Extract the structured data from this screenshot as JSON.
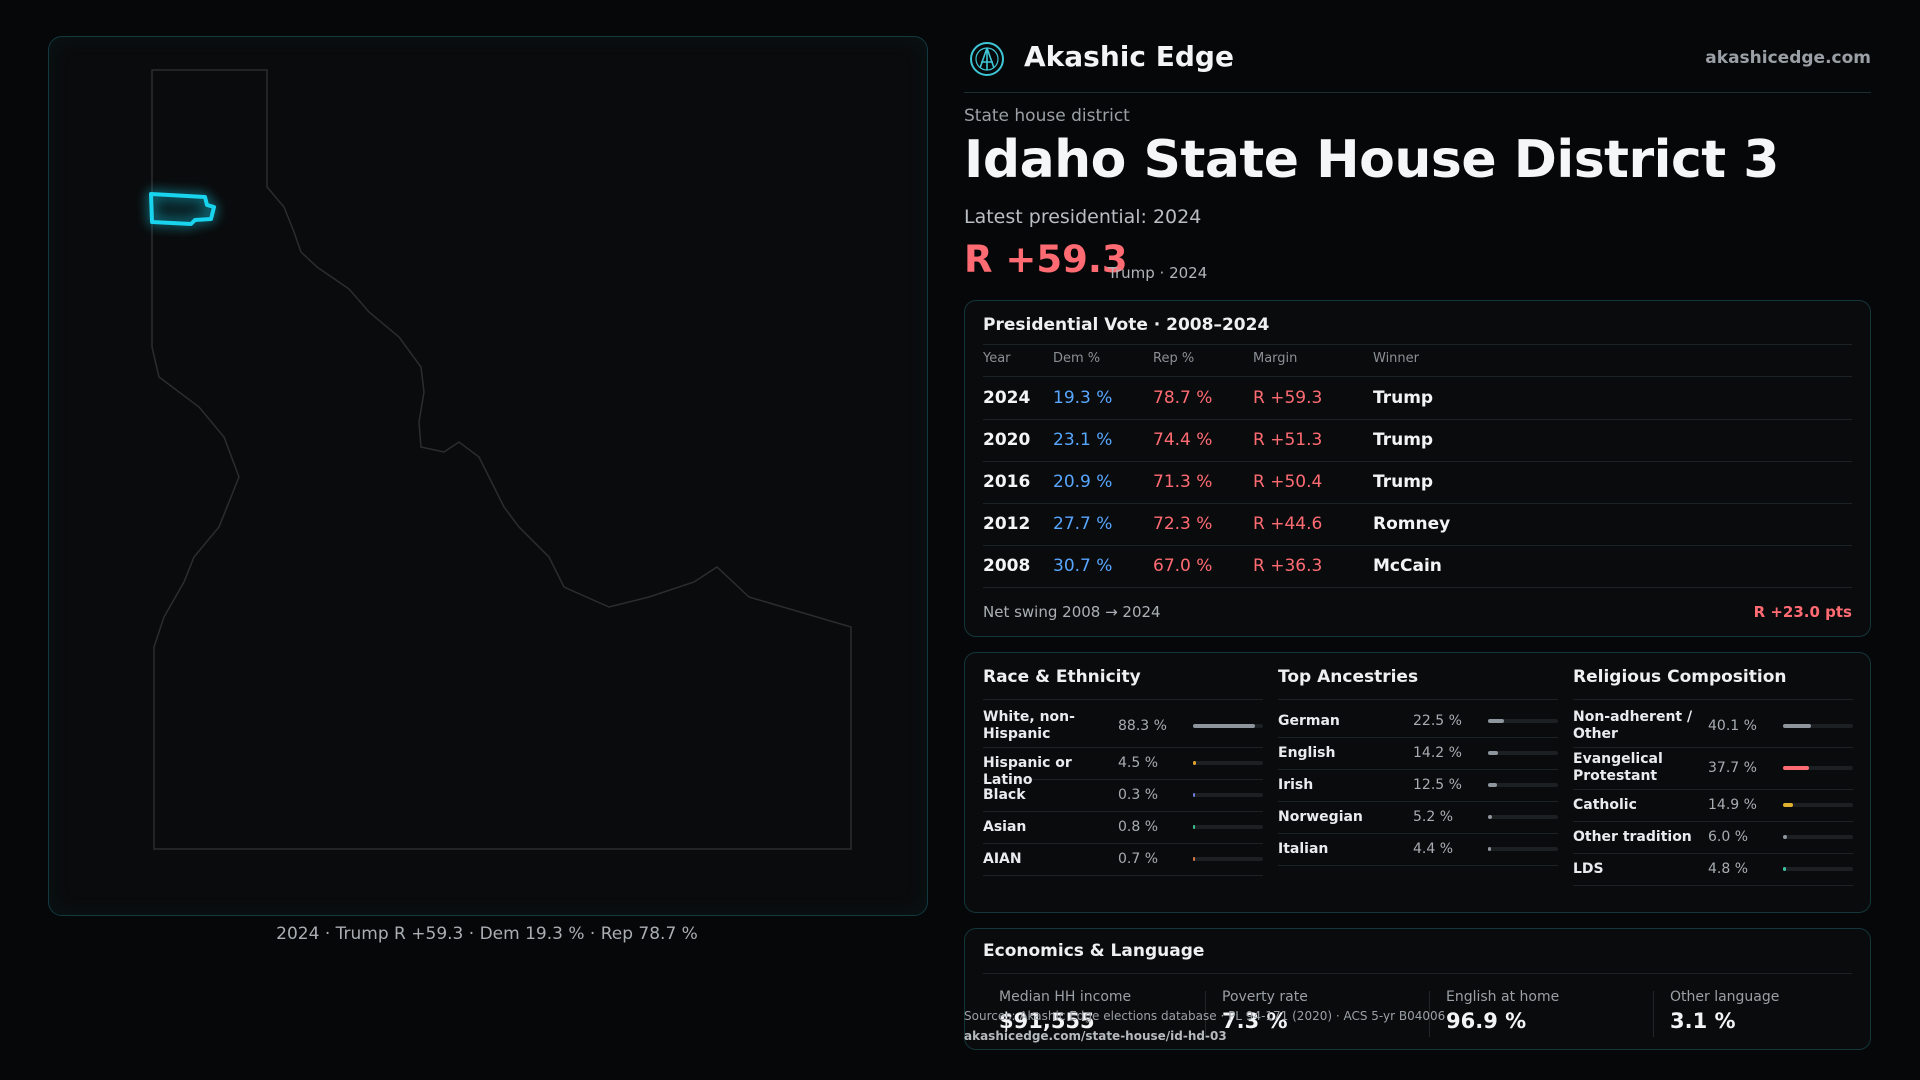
{
  "header": {
    "brand": "Akashic Edge",
    "site": "akashicedge.com"
  },
  "district": {
    "kicker": "State house district",
    "title": "Idaho State House District 3",
    "latest": "Latest presidential: 2024",
    "margin": "R +59.3",
    "margin_sub": "Trump · 2024"
  },
  "map": {
    "caption": "2024 · Trump R +59.3 · Dem 19.3 % · Rep 78.7 %"
  },
  "vote": {
    "title": "Presidential Vote · 2008–2024",
    "columns": [
      "Year",
      "Dem %",
      "Rep %",
      "Margin",
      "Winner"
    ],
    "rows": [
      {
        "year": "2024",
        "dem": "19.3 %",
        "rep": "78.7 %",
        "margin": "R +59.3",
        "winner": "Trump"
      },
      {
        "year": "2020",
        "dem": "23.1 %",
        "rep": "74.4 %",
        "margin": "R +51.3",
        "winner": "Trump"
      },
      {
        "year": "2016",
        "dem": "20.9 %",
        "rep": "71.3 %",
        "margin": "R +50.4",
        "winner": "Trump"
      },
      {
        "year": "2012",
        "dem": "27.7 %",
        "rep": "72.3 %",
        "margin": "R +44.6",
        "winner": "Romney"
      },
      {
        "year": "2008",
        "dem": "30.7 %",
        "rep": "67.0 %",
        "margin": "R +36.3",
        "winner": "McCain"
      }
    ],
    "swing_label": "Net swing 2008 → 2024",
    "swing_value": "R +23.0 pts"
  },
  "race": {
    "title": "Race & Ethnicity",
    "items": [
      {
        "label": "White, non-Hispanic",
        "value": "88.3 %",
        "pct": 88.3,
        "color": "#8e959c"
      },
      {
        "label": "Hispanic or Latino",
        "value": "4.5 %",
        "pct": 4.5,
        "color": "#e0a030"
      },
      {
        "label": "Black",
        "value": "0.3 %",
        "pct": 0.3,
        "color": "#6c7bd8"
      },
      {
        "label": "Asian",
        "value": "0.8 %",
        "pct": 0.8,
        "color": "#3fbf8f"
      },
      {
        "label": "AIAN",
        "value": "0.7 %",
        "pct": 0.7,
        "color": "#d8784a"
      }
    ]
  },
  "ancestry": {
    "title": "Top Ancestries",
    "items": [
      {
        "label": "German",
        "value": "22.5 %",
        "pct": 22.5,
        "color": "#8e959c"
      },
      {
        "label": "English",
        "value": "14.2 %",
        "pct": 14.2,
        "color": "#8e959c"
      },
      {
        "label": "Irish",
        "value": "12.5 %",
        "pct": 12.5,
        "color": "#8e959c"
      },
      {
        "label": "Norwegian",
        "value": "5.2 %",
        "pct": 5.2,
        "color": "#8e959c"
      },
      {
        "label": "Italian",
        "value": "4.4 %",
        "pct": 4.4,
        "color": "#8e959c"
      }
    ]
  },
  "religion": {
    "title": "Religious Composition",
    "items": [
      {
        "label": "Non-adherent / Other",
        "value": "40.1 %",
        "pct": 40.1,
        "color": "#8e959c"
      },
      {
        "label": "Evangelical Protestant",
        "value": "37.7 %",
        "pct": 37.7,
        "color": "#ff6b73"
      },
      {
        "label": "Catholic",
        "value": "14.9 %",
        "pct": 14.9,
        "color": "#e0b030"
      },
      {
        "label": "Other tradition",
        "value": "6.0 %",
        "pct": 6.0,
        "color": "#8e959c"
      },
      {
        "label": "LDS",
        "value": "4.8 %",
        "pct": 4.8,
        "color": "#3fbf9f"
      }
    ]
  },
  "economics": {
    "title": "Economics & Language",
    "stats": [
      {
        "label": "Median HH income",
        "value": "$91,555"
      },
      {
        "label": "Poverty rate",
        "value": "7.3 %"
      },
      {
        "label": "English at home",
        "value": "96.9 %"
      },
      {
        "label": "Other language",
        "value": "3.1 %"
      }
    ]
  },
  "sources": {
    "text": "Sources: Akashic Edge elections database · PL 94-171 (2020) · ACS 5-yr B04006",
    "url": "akashicedge.com/state-house/id-hd-03"
  }
}
